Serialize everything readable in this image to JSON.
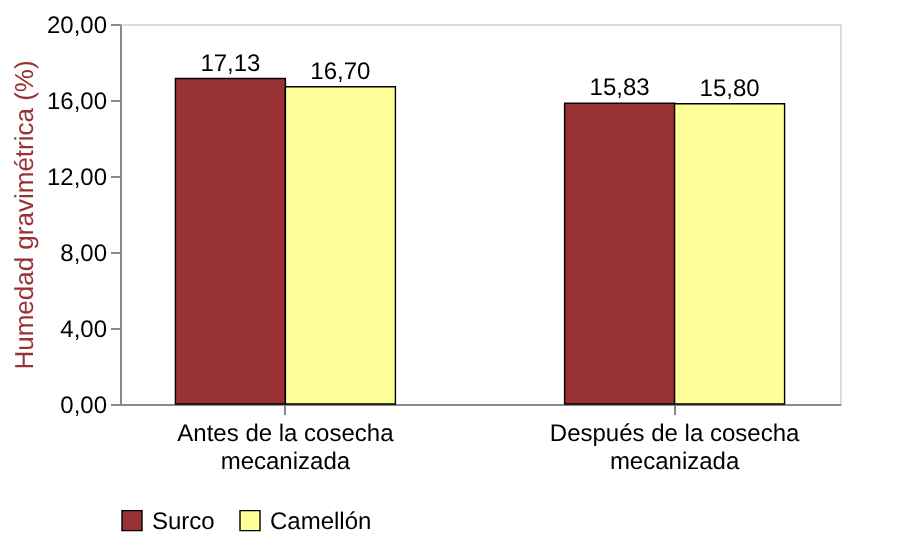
{
  "chart_data": {
    "type": "bar",
    "ylabel": "Humedad gravimétrica (%)",
    "categories": [
      "Antes de la cosecha mecanizada",
      "Después de la cosecha mecanizada"
    ],
    "series": [
      {
        "name": "Surco",
        "color": "#993333",
        "values": [
          17.13,
          15.83
        ],
        "value_labels": [
          "17,13",
          "15,83"
        ]
      },
      {
        "name": "Camellón",
        "color": "#ffff99",
        "values": [
          16.7,
          15.8
        ],
        "value_labels": [
          "16,70",
          "15,80"
        ]
      }
    ],
    "ylim": [
      0,
      20
    ],
    "yticks": [
      {
        "value": 0,
        "label": "0,00"
      },
      {
        "value": 4,
        "label": "4,00"
      },
      {
        "value": 8,
        "label": "8,00"
      },
      {
        "value": 12,
        "label": "12,00"
      },
      {
        "value": 16,
        "label": "16,00"
      },
      {
        "value": 20,
        "label": "20,00"
      }
    ],
    "grid": false,
    "legend": "bottom"
  }
}
